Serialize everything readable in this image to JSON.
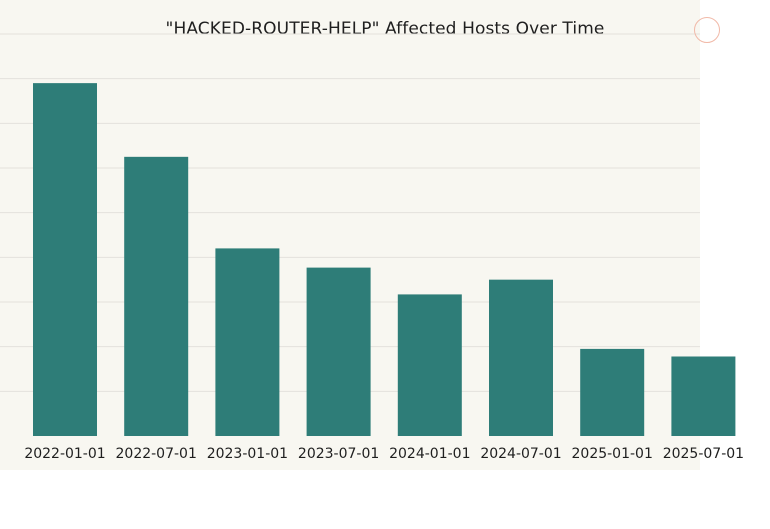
{
  "chart_data": {
    "type": "bar",
    "title": "\"HACKED-ROUTER-HELP\" Affected Hosts Over Time",
    "xlabel": "",
    "ylabel": "",
    "categories": [
      "2022-01-01",
      "2022-07-01",
      "2023-01-01",
      "2023-07-01",
      "2024-01-01",
      "2024-07-01",
      "2025-01-01",
      "2025-07-01"
    ],
    "values": [
      7.9,
      6.25,
      4.2,
      3.77,
      3.17,
      3.5,
      1.95,
      1.78
    ],
    "ylim": [
      0,
      9
    ],
    "grid": true,
    "legend": "none",
    "colors": {
      "bar": "#2e7d78",
      "grid": "#e3e2dc",
      "background": "#f8f7f1",
      "text": "#1f1f1f"
    }
  }
}
